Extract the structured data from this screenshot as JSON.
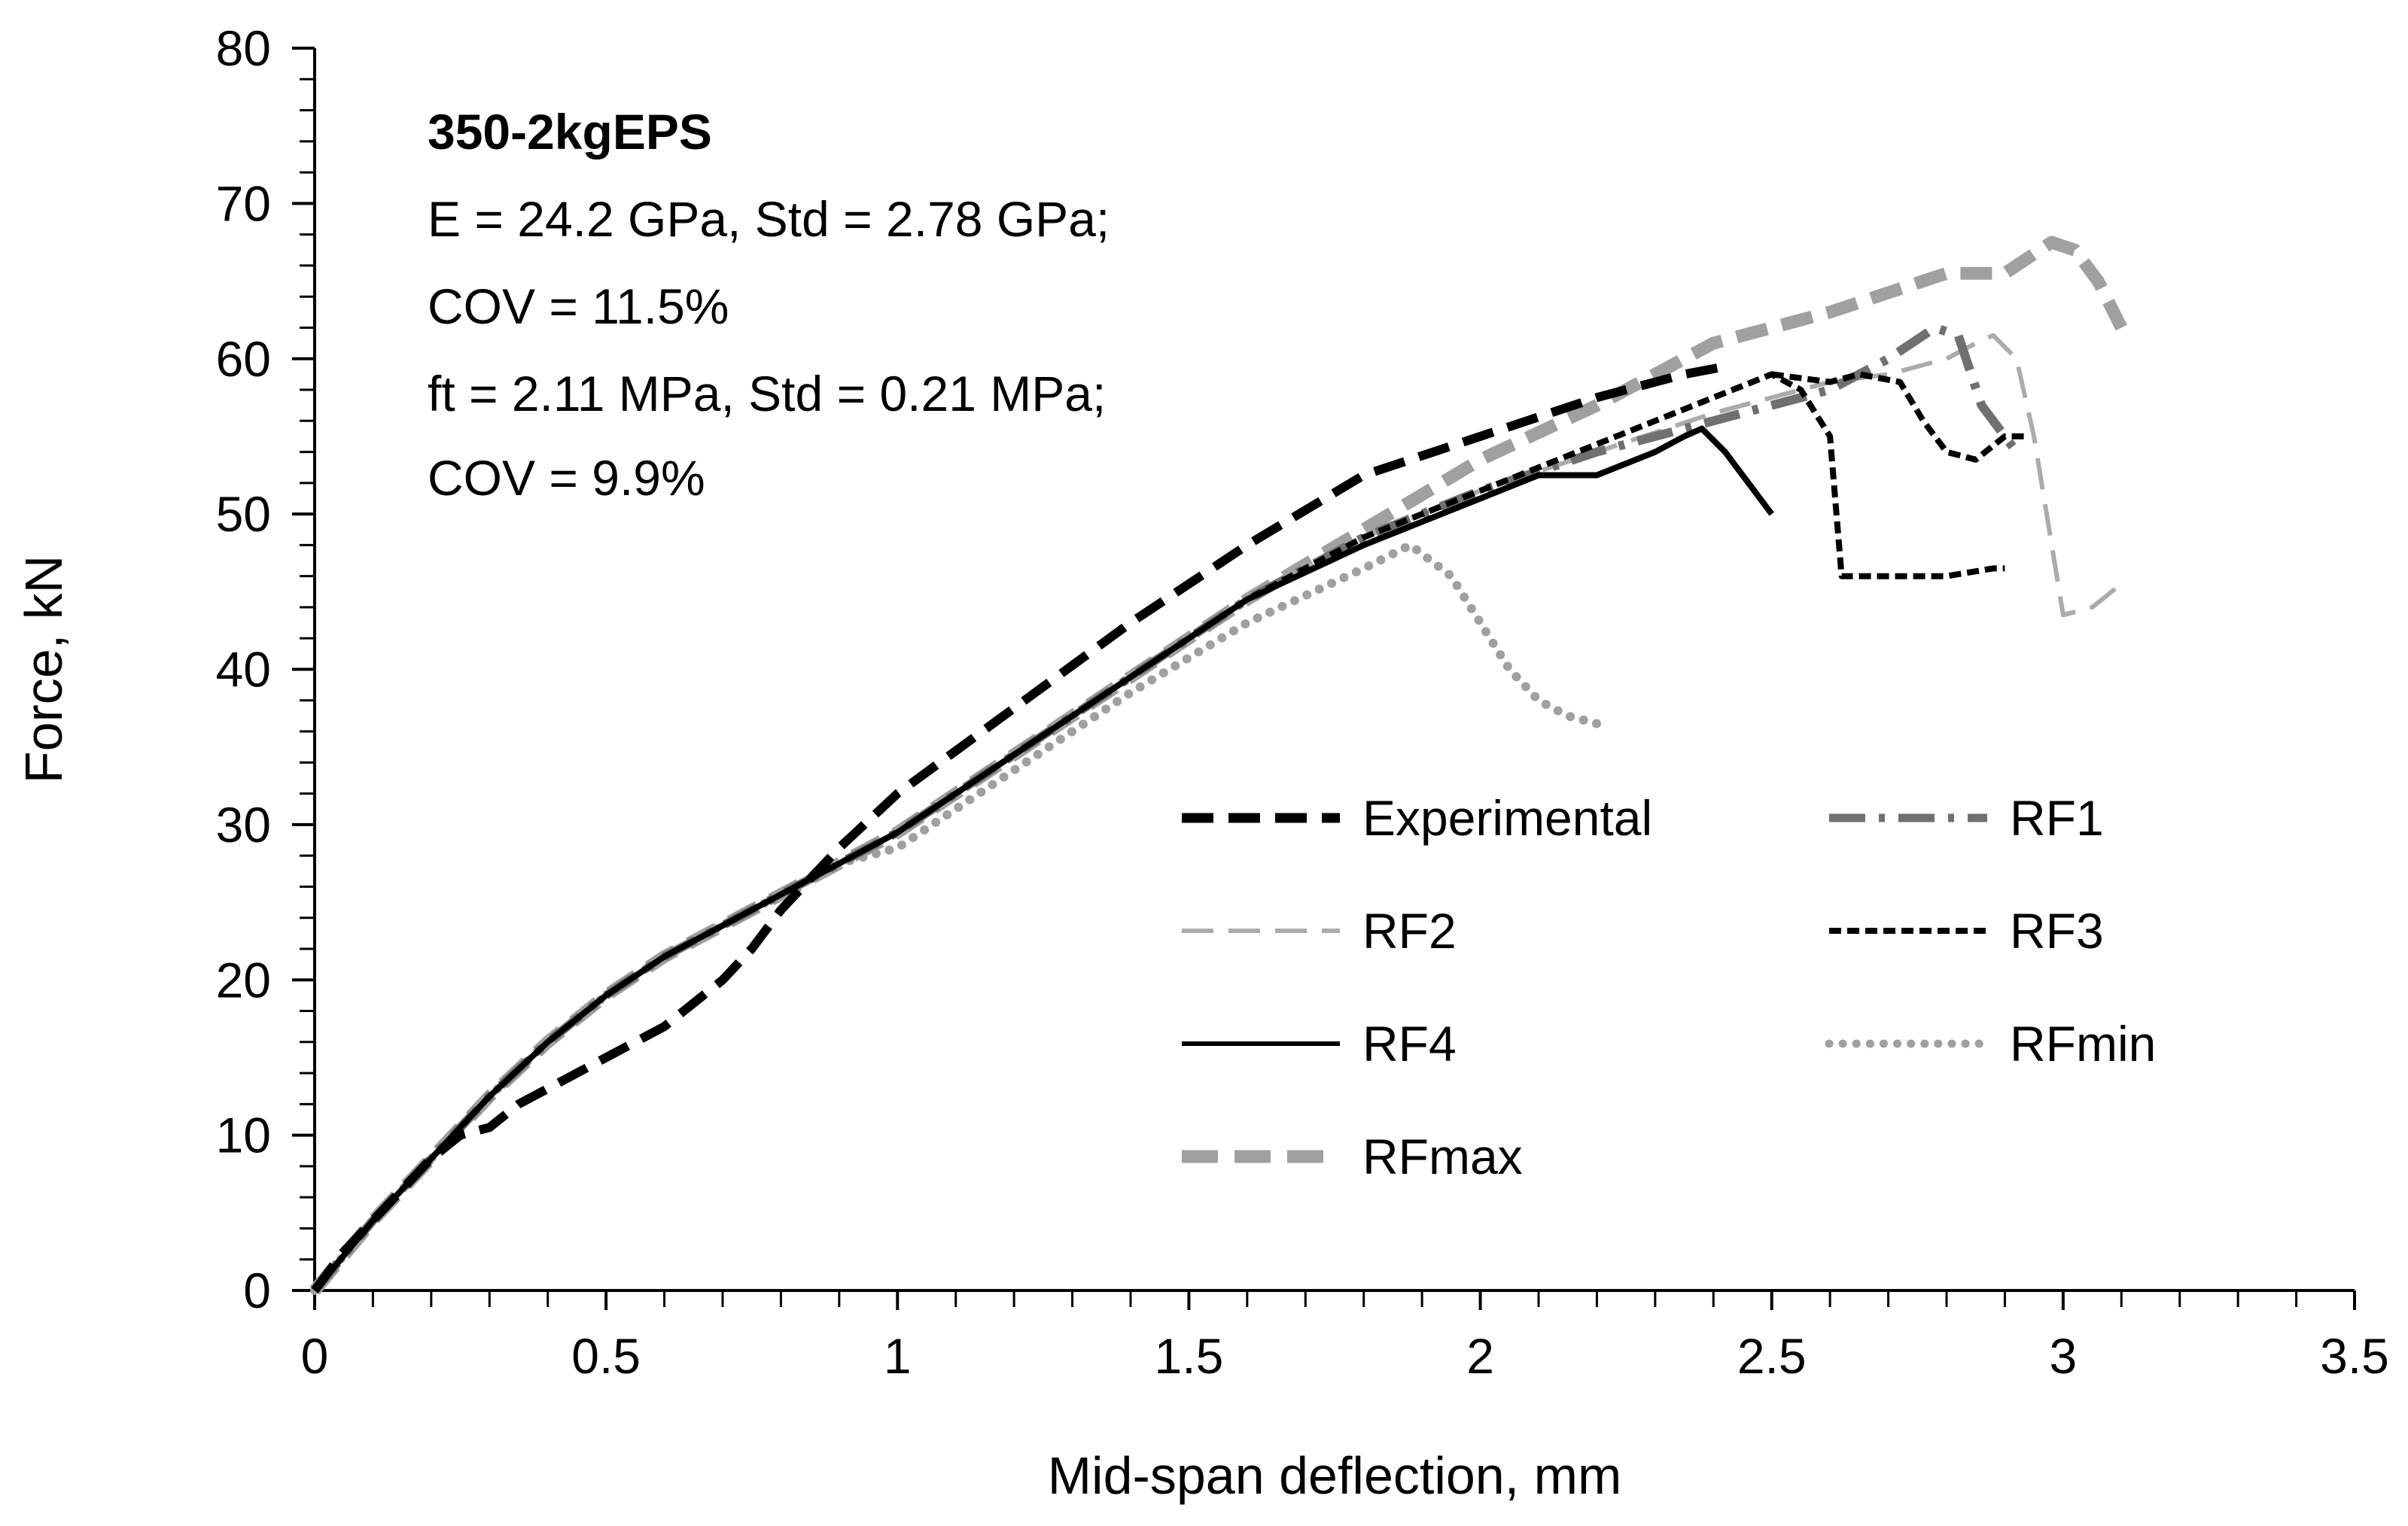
{
  "chart_data": {
    "type": "line",
    "title": "",
    "xlabel": "Mid-span deflection, mm",
    "ylabel": "Force, kN",
    "xlim": [
      0,
      3.5
    ],
    "ylim": [
      0,
      80
    ],
    "xticks": [
      0,
      0.5,
      1,
      1.5,
      2,
      2.5,
      3,
      3.5
    ],
    "xtick_labels": [
      "0",
      "0.5",
      "1",
      "1.5",
      "2",
      "2.5",
      "3",
      "3.5"
    ],
    "yticks": [
      0,
      10,
      20,
      30,
      40,
      50,
      60,
      70,
      80
    ],
    "ytick_labels": [
      "0",
      "10",
      "20",
      "30",
      "40",
      "50",
      "60",
      "70",
      "80"
    ],
    "grid": false,
    "legend_position": "center-right",
    "annotations": {
      "title": "350-2kgEPS",
      "lines": [
        "E = 24.2 GPa, Std = 2.78 GPa;",
        "COV = 11.5%",
        "ft = 2.11 MPa, Std = 0.21 MPa;",
        "COV = 9.9%"
      ]
    },
    "series": [
      {
        "name": "Experimental",
        "color": "#000000",
        "dash": "long-dash",
        "weight": "heavy",
        "x": [
          0,
          0.05,
          0.1,
          0.15,
          0.2,
          0.25,
          0.3,
          0.35,
          0.4,
          0.45,
          0.5,
          0.55,
          0.6,
          0.65,
          0.7,
          0.75,
          0.8,
          0.85,
          0.9,
          1.0,
          1.2,
          1.4,
          1.6,
          1.8,
          2.0,
          2.2,
          2.35,
          2.42
        ],
        "y": [
          0,
          2.5,
          4.5,
          6.5,
          8.5,
          10,
          10.5,
          12,
          13,
          14,
          15,
          16,
          17,
          18.5,
          20,
          22,
          24.5,
          26.5,
          28.5,
          32,
          37.5,
          43,
          48,
          52.5,
          55,
          57.5,
          59,
          59.5
        ]
      },
      {
        "name": "RF1",
        "color": "#707070",
        "dash": "dash-dot",
        "weight": "heavy",
        "x": [
          0,
          0.1,
          0.2,
          0.3,
          0.4,
          0.5,
          0.6,
          0.7,
          0.8,
          0.9,
          1.0,
          1.2,
          1.4,
          1.6,
          1.8,
          2.0,
          2.2,
          2.4,
          2.6,
          2.7,
          2.78,
          2.82,
          2.86,
          2.9,
          2.92
        ],
        "y": [
          0,
          4.5,
          8.5,
          12.5,
          16,
          19,
          21.5,
          23.5,
          25.5,
          27.5,
          29.5,
          34.5,
          39.5,
          44.5,
          48.5,
          51.5,
          54,
          56,
          58,
          60,
          62,
          61.5,
          57,
          55,
          54
        ]
      },
      {
        "name": "RF2",
        "color": "#ababab",
        "dash": "long-dash",
        "weight": "light",
        "x": [
          0,
          0.1,
          0.2,
          0.3,
          0.4,
          0.5,
          0.6,
          0.7,
          0.8,
          0.9,
          1.0,
          1.2,
          1.4,
          1.6,
          1.8,
          2.0,
          2.2,
          2.4,
          2.6,
          2.7,
          2.8,
          2.85,
          2.88,
          2.92,
          2.95,
          3.0,
          3.05,
          3.1
        ],
        "y": [
          0,
          4.5,
          8.5,
          12.5,
          16,
          19,
          21.5,
          23.5,
          25.5,
          27.5,
          29.5,
          34.5,
          39.5,
          44.5,
          48.5,
          51.5,
          54,
          56.5,
          58.5,
          59,
          60,
          61,
          61.5,
          60,
          55,
          43.5,
          44,
          45.5
        ]
      },
      {
        "name": "RF3",
        "color": "#000000",
        "dash": "short-dash",
        "weight": "medium",
        "x": [
          0,
          0.1,
          0.2,
          0.3,
          0.4,
          0.5,
          0.6,
          0.7,
          0.8,
          0.9,
          1.0,
          1.2,
          1.4,
          1.6,
          1.8,
          2.0,
          2.2,
          2.4,
          2.5,
          2.55,
          2.6,
          2.62,
          2.64,
          2.7,
          2.8,
          2.88,
          2.9
        ],
        "y": [
          0,
          4.5,
          8.5,
          12.5,
          16,
          19,
          21.5,
          23.5,
          25.5,
          27.5,
          29.5,
          34.5,
          39.5,
          44.5,
          48.5,
          51.5,
          54.5,
          57.5,
          59,
          58,
          55,
          46,
          46,
          46,
          46,
          46.5,
          46.5
        ]
      },
      {
        "name": "RF3-tail",
        "legend": false,
        "color": "#000000",
        "dash": "short-dash",
        "weight": "medium",
        "x": [
          2.5,
          2.6,
          2.65,
          2.72,
          2.76,
          2.8,
          2.85,
          2.9,
          2.94
        ],
        "y": [
          59,
          58.5,
          59,
          58.5,
          56,
          54,
          53.5,
          55,
          55
        ]
      },
      {
        "name": "RF4",
        "color": "#000000",
        "dash": "solid",
        "weight": "medium",
        "x": [
          0,
          0.1,
          0.2,
          0.3,
          0.4,
          0.5,
          0.6,
          0.7,
          0.8,
          0.9,
          1.0,
          1.2,
          1.4,
          1.6,
          1.8,
          2.0,
          2.1,
          2.2,
          2.3,
          2.35,
          2.38,
          2.42,
          2.46,
          2.5
        ],
        "y": [
          0,
          4.5,
          8.5,
          12.5,
          16,
          19,
          21.5,
          23.5,
          25.5,
          27.5,
          29.5,
          34.5,
          39.5,
          44.5,
          48,
          51,
          52.5,
          52.5,
          54,
          55,
          55.5,
          54,
          52,
          50
        ]
      },
      {
        "name": "RFmin",
        "color": "#a0a0a0",
        "dash": "dot",
        "weight": "heavy",
        "x": [
          0,
          0.1,
          0.2,
          0.3,
          0.4,
          0.5,
          0.6,
          0.7,
          0.8,
          0.9,
          1.0,
          1.2,
          1.4,
          1.6,
          1.8,
          1.88,
          1.95,
          2.0,
          2.05,
          2.1,
          2.15,
          2.2
        ],
        "y": [
          0,
          4.5,
          8.5,
          12.5,
          16,
          19,
          21.5,
          23.5,
          25.5,
          27.5,
          28.5,
          33.5,
          38.5,
          43,
          46.5,
          48,
          46,
          43,
          40,
          38,
          37,
          36.5
        ]
      },
      {
        "name": "RFmax",
        "color": "#a0a0a0",
        "dash": "long-dash",
        "weight": "xheavy",
        "x": [
          0,
          0.1,
          0.2,
          0.3,
          0.4,
          0.5,
          0.6,
          0.7,
          0.8,
          0.9,
          1.0,
          1.2,
          1.4,
          1.6,
          1.8,
          2.0,
          2.2,
          2.4,
          2.6,
          2.8,
          2.9,
          2.98,
          3.02,
          3.06,
          3.1
        ],
        "y": [
          0,
          4.5,
          8.5,
          12.5,
          16,
          19,
          21.5,
          23.5,
          25.5,
          27.5,
          29.5,
          34.5,
          39.5,
          44.5,
          49,
          53.5,
          57,
          61,
          63,
          65.5,
          65.5,
          67.5,
          67,
          65,
          62
        ]
      }
    ]
  }
}
